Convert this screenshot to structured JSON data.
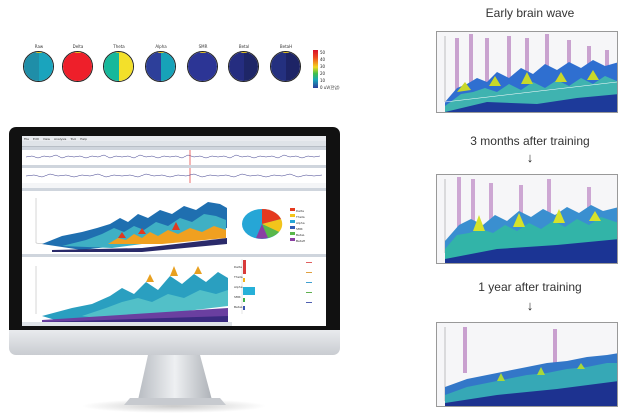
{
  "brain_maps": {
    "bands": [
      {
        "label": "Raw",
        "left": "#1f8ea8",
        "right": "#1aa4bd"
      },
      {
        "label": "Delta",
        "left": "#ee1f2a",
        "right": "#ee1f2a"
      },
      {
        "label": "Theta",
        "left": "#17b89b",
        "right": "#f3e02a"
      },
      {
        "label": "Alpha",
        "left": "#2d3f9a",
        "right": "#17a2b8"
      },
      {
        "label": "SMR",
        "left": "#2c3595",
        "right": "#2c3595"
      },
      {
        "label": "Betal",
        "left": "#252d80",
        "right": "#1e2667"
      },
      {
        "label": "BetaH",
        "left": "#24307f",
        "right": "#1d2466"
      }
    ],
    "scale": {
      "ticks": [
        "50",
        "40",
        "30",
        "20",
        "10",
        "0 uV(전압)"
      ],
      "colors": [
        "#d8102a",
        "#ee4b1f",
        "#f3d61e",
        "#3fbf4a",
        "#19a7b8",
        "#2b3d9c"
      ]
    }
  },
  "monitor": {
    "menu": [
      "File",
      "Edit",
      "View",
      "Analysis",
      "Tool",
      "Help"
    ],
    "pie_legend": [
      "Delta",
      "Theta",
      "Alpha",
      "SMR",
      "BetaL",
      "BetaH"
    ],
    "pie_colors": [
      "#e53a1f",
      "#f3c41b",
      "#26a6d6",
      "#3059b3",
      "#59b74a",
      "#8a3fa3"
    ],
    "bar_labels": [
      "Delta",
      "Theta",
      "Alpha",
      "SMR",
      "BetaL"
    ],
    "bar_colors": [
      "#d83a3a",
      "#f0b21c",
      "#26b0d8",
      "#3fb04a",
      "#3a55b0"
    ]
  },
  "stages": [
    {
      "title": "Early brain wave"
    },
    {
      "title": "3 months after training"
    },
    {
      "title": "1 year after training"
    }
  ],
  "arrows": [
    "↓",
    "↓"
  ]
}
